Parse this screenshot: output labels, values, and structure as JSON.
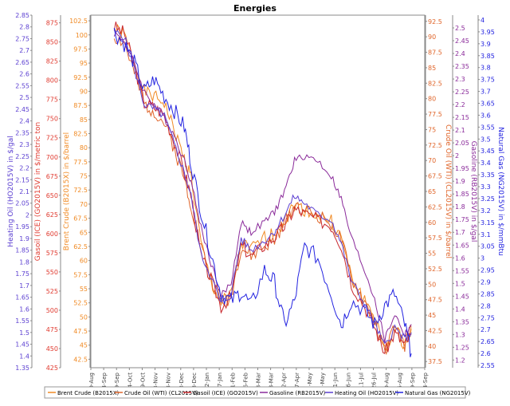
{
  "chart_data": {
    "type": "line",
    "title": "Energies",
    "x": {
      "ticks": [
        "30-Aug",
        "14-Sep",
        "29-Sep",
        "14-Oct",
        "29-Oct",
        "13-Nov",
        "28-Nov",
        "13-Dec",
        "28-Dec",
        "12-Jan",
        "27-Jan",
        "11-Feb",
        "26-Feb",
        "13-Mar",
        "28-Mar",
        "12-Apr",
        "27-Apr",
        "12-May",
        "27-May",
        "11-Jun",
        "26-Jun",
        "11-Jul",
        "26-Jul",
        "10-Aug",
        "25-Aug",
        "9-Sep",
        "24-Sep"
      ]
    },
    "axes": [
      {
        "id": "ho",
        "label": "Heating Oil (HO2015V) in $/gal",
        "color": "#5b3fd1",
        "side": "left",
        "range": [
          1.35,
          2.85
        ],
        "ticks": [
          "2.85",
          "2.8",
          "2.75",
          "2.7",
          "2.65",
          "2.6",
          "2.55",
          "2.5",
          "2.45",
          "2.4",
          "2.35",
          "2.3",
          "2.25",
          "2.2",
          "2.15",
          "2.1",
          "2.05",
          "2",
          "1.95",
          "1.9",
          "1.85",
          "1.8",
          "1.75",
          "1.7",
          "1.65",
          "1.6",
          "1.55",
          "1.5",
          "1.45",
          "1.4",
          "1.35"
        ]
      },
      {
        "id": "go",
        "label": "Gasoil (ICE) (GO2015V) in $/metric ton",
        "color": "#e03a2f",
        "side": "left",
        "range": [
          425,
          885
        ],
        "ticks": [
          "875",
          "850",
          "825",
          "800",
          "775",
          "750",
          "725",
          "700",
          "675",
          "650",
          "625",
          "600",
          "575",
          "550",
          "525",
          "500",
          "475",
          "450",
          "425"
        ]
      },
      {
        "id": "brent",
        "label": "Brent Crude (B2015X) in $/barrel",
        "color": "#f08a24",
        "side": "left",
        "range": [
          41,
          103.5
        ],
        "ticks": [
          "102.5",
          "100",
          "97.5",
          "95",
          "92.5",
          "90",
          "87.5",
          "85",
          "82.5",
          "80",
          "77.5",
          "75",
          "72.5",
          "70",
          "67.5",
          "65",
          "62.5",
          "60",
          "57.5",
          "55",
          "52.5",
          "50",
          "47.5",
          "45",
          "42.5"
        ]
      },
      {
        "id": "wti",
        "label": "Crude Oil (WTI) (CL2015V) in $/barrel",
        "color": "#e0652a",
        "side": "right",
        "range": [
          36.5,
          93.5
        ],
        "ticks": [
          "92.5",
          "90",
          "87.5",
          "85",
          "82.5",
          "80",
          "77.5",
          "75",
          "72.5",
          "70",
          "67.5",
          "65",
          "62.5",
          "60",
          "57.5",
          "55",
          "52.5",
          "50",
          "47.5",
          "45",
          "42.5",
          "40",
          "37.5"
        ]
      },
      {
        "id": "rb",
        "label": "Gasoline (RB2015V) in $/gal",
        "color": "#8a2a9a",
        "side": "right",
        "range": [
          1.17,
          2.55
        ],
        "ticks": [
          "2.5",
          "2.45",
          "2.4",
          "2.35",
          "2.3",
          "2.25",
          "2.2",
          "2.15",
          "2.1",
          "2.05",
          "2",
          "1.95",
          "1.9",
          "1.85",
          "1.8",
          "1.75",
          "1.7",
          "1.65",
          "1.6",
          "1.55",
          "1.5",
          "1.45",
          "1.4",
          "1.35",
          "1.3",
          "1.25",
          "1.2"
        ]
      },
      {
        "id": "ng",
        "label": "Natural Gas (NG2015V) in $/mmBtu",
        "color": "#2323e0",
        "side": "right",
        "range": [
          2.54,
          4.02
        ],
        "ticks": [
          "4",
          "3.95",
          "3.9",
          "3.85",
          "3.8",
          "3.75",
          "3.7",
          "3.65",
          "3.6",
          "3.55",
          "3.5",
          "3.45",
          "3.4",
          "3.35",
          "3.3",
          "3.25",
          "3.2",
          "3.15",
          "3.1",
          "3.05",
          "3",
          "2.95",
          "2.9",
          "2.85",
          "2.8",
          "2.75",
          "2.7",
          "2.65",
          "2.6",
          "2.55"
        ]
      }
    ],
    "series": [
      {
        "name": "Brent Crude (B2015X)",
        "axis": "brent",
        "color": "#f08a24",
        "jitter": 0.4,
        "points": [
          [
            0.07,
            101
          ],
          [
            0.1,
            100
          ],
          [
            0.13,
            95
          ],
          [
            0.16,
            90
          ],
          [
            0.19,
            89
          ],
          [
            0.22,
            88
          ],
          [
            0.25,
            83
          ],
          [
            0.28,
            78
          ],
          [
            0.3,
            75
          ],
          [
            0.33,
            63
          ],
          [
            0.36,
            56
          ],
          [
            0.39,
            52.5
          ],
          [
            0.42,
            54
          ],
          [
            0.45,
            63
          ],
          [
            0.48,
            62
          ],
          [
            0.52,
            64
          ],
          [
            0.55,
            65
          ],
          [
            0.58,
            67
          ],
          [
            0.61,
            70
          ],
          [
            0.64,
            69
          ],
          [
            0.68,
            68
          ],
          [
            0.72,
            67
          ],
          [
            0.75,
            64
          ],
          [
            0.78,
            57
          ],
          [
            0.82,
            53
          ],
          [
            0.85,
            50
          ],
          [
            0.88,
            44
          ],
          [
            0.91,
            48
          ],
          [
            0.94,
            45
          ],
          [
            0.96,
            48
          ]
        ]
      },
      {
        "name": "Crude Oil (WTI) (CL2015V)",
        "axis": "wti",
        "color": "#e0652a",
        "jitter": 0.4,
        "points": [
          [
            0.07,
            90
          ],
          [
            0.1,
            89
          ],
          [
            0.13,
            84
          ],
          [
            0.16,
            79
          ],
          [
            0.19,
            78
          ],
          [
            0.22,
            76
          ],
          [
            0.25,
            72
          ],
          [
            0.28,
            67
          ],
          [
            0.3,
            63
          ],
          [
            0.33,
            56
          ],
          [
            0.36,
            51
          ],
          [
            0.39,
            47
          ],
          [
            0.42,
            48
          ],
          [
            0.45,
            56
          ],
          [
            0.48,
            54.5
          ],
          [
            0.52,
            56
          ],
          [
            0.55,
            57
          ],
          [
            0.58,
            60
          ],
          [
            0.61,
            63
          ],
          [
            0.64,
            62
          ],
          [
            0.68,
            61
          ],
          [
            0.72,
            60
          ],
          [
            0.75,
            57
          ],
          [
            0.78,
            51
          ],
          [
            0.82,
            47
          ],
          [
            0.85,
            44
          ],
          [
            0.88,
            39
          ],
          [
            0.91,
            43
          ],
          [
            0.94,
            40
          ],
          [
            0.96,
            43
          ]
        ]
      },
      {
        "name": "Gasoil (ICE) (GO2015V)",
        "axis": "go",
        "color": "#c8282e",
        "jitter": 3,
        "points": [
          [
            0.07,
            870
          ],
          [
            0.1,
            862
          ],
          [
            0.13,
            820
          ],
          [
            0.16,
            770
          ],
          [
            0.19,
            765
          ],
          [
            0.22,
            755
          ],
          [
            0.25,
            720
          ],
          [
            0.28,
            680
          ],
          [
            0.3,
            650
          ],
          [
            0.33,
            570
          ],
          [
            0.36,
            540
          ],
          [
            0.39,
            505
          ],
          [
            0.42,
            518
          ],
          [
            0.45,
            585
          ],
          [
            0.48,
            570
          ],
          [
            0.52,
            585
          ],
          [
            0.55,
            595
          ],
          [
            0.58,
            610
          ],
          [
            0.61,
            632
          ],
          [
            0.64,
            626
          ],
          [
            0.68,
            618
          ],
          [
            0.72,
            610
          ],
          [
            0.75,
            585
          ],
          [
            0.78,
            535
          ],
          [
            0.82,
            505
          ],
          [
            0.85,
            478
          ],
          [
            0.88,
            445
          ],
          [
            0.91,
            470
          ],
          [
            0.94,
            455
          ],
          [
            0.96,
            468
          ]
        ]
      },
      {
        "name": "Gasoline (RB2015V)",
        "axis": "rb",
        "color": "#8a2a9a",
        "jitter": 0.005,
        "points": [
          [
            0.07,
            2.48
          ],
          [
            0.1,
            2.45
          ],
          [
            0.13,
            2.36
          ],
          [
            0.16,
            2.25
          ],
          [
            0.19,
            2.2
          ],
          [
            0.22,
            2.15
          ],
          [
            0.25,
            2.08
          ],
          [
            0.28,
            1.98
          ],
          [
            0.3,
            1.9
          ],
          [
            0.33,
            1.72
          ],
          [
            0.36,
            1.58
          ],
          [
            0.39,
            1.45
          ],
          [
            0.42,
            1.5
          ],
          [
            0.45,
            1.74
          ],
          [
            0.48,
            1.7
          ],
          [
            0.52,
            1.74
          ],
          [
            0.55,
            1.78
          ],
          [
            0.58,
            1.86
          ],
          [
            0.61,
            1.98
          ],
          [
            0.64,
            2.0
          ],
          [
            0.68,
            1.98
          ],
          [
            0.72,
            1.92
          ],
          [
            0.75,
            1.83
          ],
          [
            0.78,
            1.68
          ],
          [
            0.82,
            1.55
          ],
          [
            0.85,
            1.44
          ],
          [
            0.88,
            1.28
          ],
          [
            0.91,
            1.38
          ],
          [
            0.94,
            1.3
          ],
          [
            0.96,
            1.34
          ]
        ]
      },
      {
        "name": "Heating Oil (HO2015V)",
        "axis": "ho",
        "color": "#5b3fd1",
        "jitter": 0.006,
        "points": [
          [
            0.07,
            2.78
          ],
          [
            0.1,
            2.76
          ],
          [
            0.13,
            2.62
          ],
          [
            0.16,
            2.47
          ],
          [
            0.19,
            2.45
          ],
          [
            0.22,
            2.42
          ],
          [
            0.25,
            2.3
          ],
          [
            0.28,
            2.18
          ],
          [
            0.3,
            2.08
          ],
          [
            0.33,
            1.83
          ],
          [
            0.36,
            1.74
          ],
          [
            0.39,
            1.62
          ],
          [
            0.42,
            1.66
          ],
          [
            0.45,
            1.9
          ],
          [
            0.48,
            1.85
          ],
          [
            0.52,
            1.89
          ],
          [
            0.55,
            1.93
          ],
          [
            0.58,
            2.0
          ],
          [
            0.61,
            2.08
          ],
          [
            0.64,
            2.05
          ],
          [
            0.68,
            2.0
          ],
          [
            0.72,
            1.98
          ],
          [
            0.75,
            1.88
          ],
          [
            0.78,
            1.72
          ],
          [
            0.82,
            1.62
          ],
          [
            0.85,
            1.54
          ],
          [
            0.88,
            1.44
          ],
          [
            0.91,
            1.52
          ],
          [
            0.94,
            1.47
          ],
          [
            0.96,
            1.5
          ]
        ]
      },
      {
        "name": "Natural Gas (NG2015V)",
        "axis": "ng",
        "color": "#2323e0",
        "jitter": 0.012,
        "points": [
          [
            0.07,
            3.95
          ],
          [
            0.1,
            3.9
          ],
          [
            0.13,
            3.82
          ],
          [
            0.16,
            3.7
          ],
          [
            0.19,
            3.75
          ],
          [
            0.22,
            3.68
          ],
          [
            0.25,
            3.62
          ],
          [
            0.28,
            3.55
          ],
          [
            0.3,
            3.4
          ],
          [
            0.33,
            3.2
          ],
          [
            0.36,
            3.02
          ],
          [
            0.39,
            2.85
          ],
          [
            0.42,
            2.82
          ],
          [
            0.45,
            2.86
          ],
          [
            0.48,
            2.8
          ],
          [
            0.52,
            2.95
          ],
          [
            0.55,
            2.9
          ],
          [
            0.58,
            2.72
          ],
          [
            0.61,
            2.82
          ],
          [
            0.64,
            3.05
          ],
          [
            0.68,
            3.0
          ],
          [
            0.72,
            2.85
          ],
          [
            0.75,
            2.72
          ],
          [
            0.78,
            2.82
          ],
          [
            0.82,
            2.78
          ],
          [
            0.85,
            2.72
          ],
          [
            0.88,
            2.8
          ],
          [
            0.91,
            2.85
          ],
          [
            0.94,
            2.72
          ],
          [
            0.96,
            2.6
          ]
        ]
      }
    ],
    "legend": {
      "placement": "bottom"
    }
  }
}
